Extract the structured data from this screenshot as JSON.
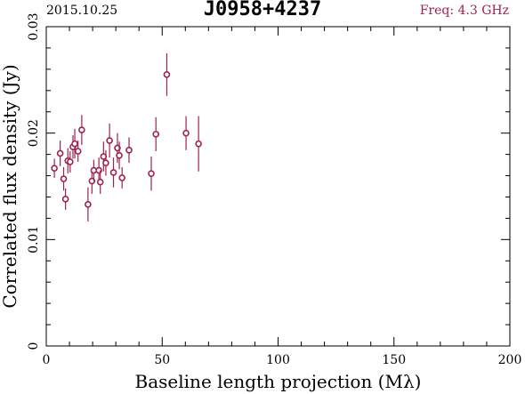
{
  "header": {
    "date": "2015.10.25",
    "source": "J0958+4237",
    "freq": "Freq: 4.3 GHz"
  },
  "colors": {
    "accent": "#a0214a",
    "axis": "#000000"
  },
  "chart_data": {
    "type": "scatter",
    "title": "J0958+4237",
    "xlabel": "Baseline length projection (Mλ)",
    "ylabel": "Correlated flux density (Jy)",
    "xlim": [
      0,
      200
    ],
    "ylim": [
      0,
      0.03
    ],
    "xticks": [
      0,
      50,
      100,
      150,
      200
    ],
    "xtick_labels": [
      "0",
      "50",
      "100",
      "150",
      "200"
    ],
    "yticks": [
      0,
      0.01,
      0.02,
      0.03
    ],
    "ytick_labels": [
      "0",
      "0.01",
      "0.02",
      "0.03"
    ],
    "grid": false,
    "points": [
      {
        "x": 3.5,
        "y": 0.0167,
        "err": 0.0009
      },
      {
        "x": 6.0,
        "y": 0.0181,
        "err": 0.0012
      },
      {
        "x": 7.5,
        "y": 0.0157,
        "err": 0.0011
      },
      {
        "x": 8.3,
        "y": 0.0138,
        "err": 0.001
      },
      {
        "x": 9.3,
        "y": 0.0174,
        "err": 0.0012
      },
      {
        "x": 10.3,
        "y": 0.0173,
        "err": 0.001
      },
      {
        "x": 11.5,
        "y": 0.0187,
        "err": 0.0011
      },
      {
        "x": 12.3,
        "y": 0.019,
        "err": 0.0014
      },
      {
        "x": 13.7,
        "y": 0.0183,
        "err": 0.001
      },
      {
        "x": 15.3,
        "y": 0.0203,
        "err": 0.0014
      },
      {
        "x": 18.0,
        "y": 0.0133,
        "err": 0.0016
      },
      {
        "x": 19.7,
        "y": 0.0155,
        "err": 0.0012
      },
      {
        "x": 20.5,
        "y": 0.0165,
        "err": 0.001
      },
      {
        "x": 22.7,
        "y": 0.0165,
        "err": 0.0012
      },
      {
        "x": 23.3,
        "y": 0.0154,
        "err": 0.0011
      },
      {
        "x": 24.7,
        "y": 0.0178,
        "err": 0.0014
      },
      {
        "x": 25.7,
        "y": 0.0172,
        "err": 0.0012
      },
      {
        "x": 27.3,
        "y": 0.0193,
        "err": 0.0016
      },
      {
        "x": 29.0,
        "y": 0.0163,
        "err": 0.0014
      },
      {
        "x": 30.7,
        "y": 0.0186,
        "err": 0.0014
      },
      {
        "x": 31.5,
        "y": 0.0179,
        "err": 0.0013
      },
      {
        "x": 32.7,
        "y": 0.0158,
        "err": 0.001
      },
      {
        "x": 35.7,
        "y": 0.0184,
        "err": 0.0012
      },
      {
        "x": 45.3,
        "y": 0.0162,
        "err": 0.0016
      },
      {
        "x": 47.3,
        "y": 0.0199,
        "err": 0.0016
      },
      {
        "x": 52.0,
        "y": 0.0255,
        "err": 0.002
      },
      {
        "x": 60.3,
        "y": 0.02,
        "err": 0.0016
      },
      {
        "x": 65.7,
        "y": 0.019,
        "err": 0.0026
      }
    ]
  }
}
